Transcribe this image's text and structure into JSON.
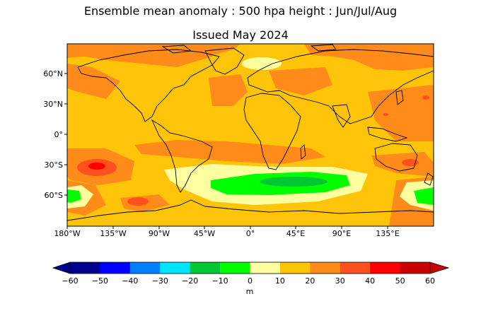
{
  "title": "Ensemble mean anomaly : 500 hpa height : Jun/Jul/Aug",
  "subtitle": "Issued May 2024",
  "map": {
    "lat_ticks": [
      "60°N",
      "30°N",
      "0°",
      "30°S",
      "60°S"
    ],
    "lon_ticks": [
      "180°W",
      "135°W",
      "90°W",
      "45°W",
      "0°",
      "45°E",
      "90°E",
      "135°E"
    ],
    "colors": {
      "land_outline": "#000000",
      "background": "#fec40a"
    }
  },
  "colorbar": {
    "unit": "m",
    "ticks": [
      "−60",
      "−50",
      "−40",
      "−30",
      "−20",
      "−10",
      "0",
      "10",
      "20",
      "30",
      "40",
      "50",
      "60"
    ],
    "colors": [
      "#00008f",
      "#0000ff",
      "#0080ff",
      "#00e5ff",
      "#00c832",
      "#00ff00",
      "#ffffa0",
      "#fec40a",
      "#ff8c1a",
      "#ff501e",
      "#ff0000",
      "#c80000"
    ],
    "under_color": "#00008f",
    "over_color": "#c80000"
  }
}
